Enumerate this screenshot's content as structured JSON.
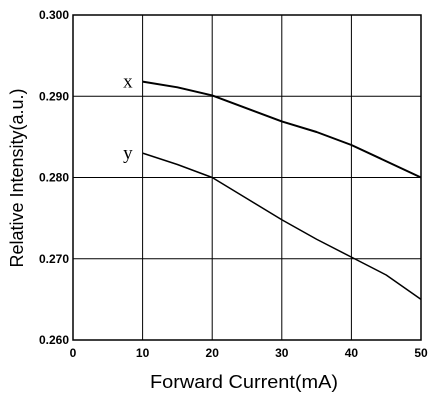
{
  "chart_data": {
    "type": "line",
    "xlabel": "Forward Current(mA)",
    "ylabel": "Relative Intensity(a.u.)",
    "xlim": [
      0,
      50
    ],
    "ylim": [
      0.26,
      0.3
    ],
    "xticks": [
      "0",
      "10",
      "20",
      "30",
      "40",
      "50"
    ],
    "yticks": [
      "0.260",
      "0.270",
      "0.280",
      "0.290",
      "0.300"
    ],
    "grid": true,
    "legend": "inline",
    "series": [
      {
        "name": "x",
        "x": [
          10,
          15,
          20,
          25,
          30,
          35,
          40,
          45,
          50
        ],
        "y": [
          0.2918,
          0.2911,
          0.2901,
          0.2885,
          0.2869,
          0.2856,
          0.284,
          0.282,
          0.28
        ]
      },
      {
        "name": "y",
        "x": [
          10,
          15,
          20,
          25,
          30,
          35,
          40,
          45,
          50
        ],
        "y": [
          0.283,
          0.2816,
          0.28,
          0.2774,
          0.2748,
          0.2724,
          0.2702,
          0.268,
          0.265
        ]
      }
    ]
  }
}
